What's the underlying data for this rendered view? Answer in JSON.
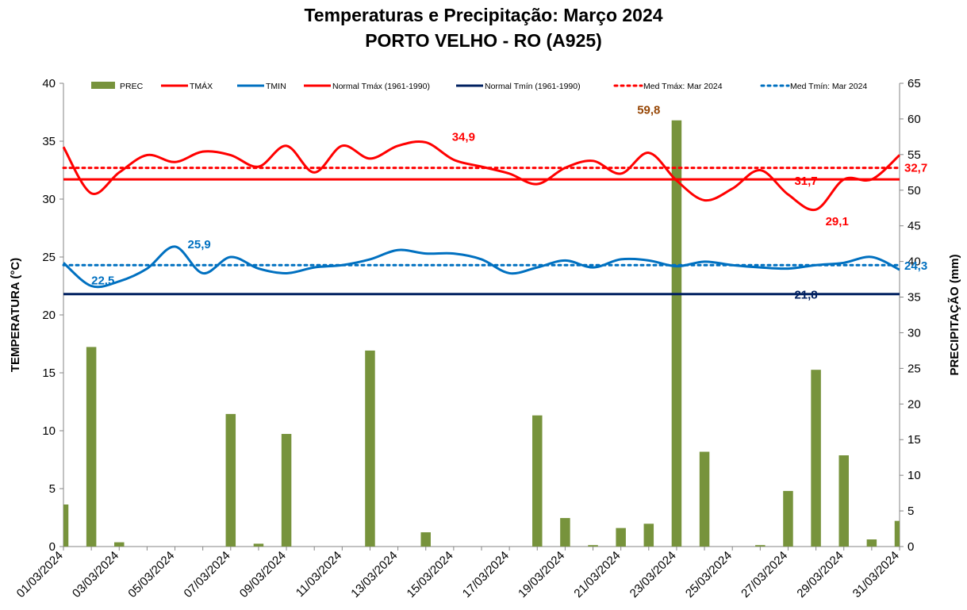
{
  "chart_data": {
    "type": "bar+line",
    "title": "Temperaturas e Precipitação: Março 2024",
    "subtitle": "PORTO VELHO - RO (A925)",
    "ylabel_left": "TEMPERATURA  (°C)",
    "ylabel_right": "PRECIPITAÇÃO  (mm)",
    "ylim_left": [
      0,
      40
    ],
    "ylim_right": [
      0,
      65
    ],
    "yticks_left": [
      "0",
      "5",
      "10",
      "15",
      "20",
      "25",
      "30",
      "35",
      "40"
    ],
    "yticks_right": [
      "0",
      "5",
      "10",
      "15",
      "20",
      "25",
      "30",
      "35",
      "40",
      "45",
      "50",
      "55",
      "60",
      "65"
    ],
    "x": [
      "01/03/2024",
      "02/03/2024",
      "03/03/2024",
      "04/03/2024",
      "05/03/2024",
      "06/03/2024",
      "07/03/2024",
      "08/03/2024",
      "09/03/2024",
      "10/03/2024",
      "11/03/2024",
      "12/03/2024",
      "13/03/2024",
      "14/03/2024",
      "15/03/2024",
      "16/03/2024",
      "17/03/2024",
      "18/03/2024",
      "19/03/2024",
      "20/03/2024",
      "21/03/2024",
      "22/03/2024",
      "23/03/2024",
      "24/03/2024",
      "25/03/2024",
      "26/03/2024",
      "27/03/2024",
      "28/03/2024",
      "29/03/2024",
      "30/03/2024",
      "31/03/2024"
    ],
    "xtick_labels": [
      "01/03/2024",
      "03/03/2024",
      "05/03/2024",
      "07/03/2024",
      "09/03/2024",
      "11/03/2024",
      "13/03/2024",
      "15/03/2024",
      "17/03/2024",
      "19/03/2024",
      "21/03/2024",
      "23/03/2024",
      "25/03/2024",
      "27/03/2024",
      "29/03/2024",
      "31/03/2024"
    ],
    "legend_position": "top",
    "series": [
      {
        "name": "PREC",
        "type": "bar",
        "axis": "right",
        "color": "#77933c",
        "values": [
          5.9,
          28.0,
          0.6,
          0,
          0,
          0,
          18.6,
          0.4,
          15.8,
          0,
          0,
          27.5,
          0,
          2.0,
          0,
          0,
          0,
          18.4,
          4.0,
          0.2,
          2.6,
          3.2,
          59.8,
          13.3,
          0,
          0.2,
          7.8,
          24.8,
          12.8,
          1.0,
          3.6
        ]
      },
      {
        "name": "TMÁX",
        "type": "line",
        "axis": "left",
        "color": "#ff0000",
        "values": [
          34.5,
          30.5,
          32.3,
          33.8,
          33.2,
          34.1,
          33.8,
          32.8,
          34.6,
          32.3,
          34.6,
          33.5,
          34.6,
          34.9,
          33.4,
          32.8,
          32.2,
          31.3,
          32.7,
          33.3,
          32.2,
          34.0,
          31.6,
          29.9,
          30.9,
          32.5,
          30.4,
          29.1,
          31.7,
          31.7,
          33.8
        ]
      },
      {
        "name": "TMIN",
        "type": "line",
        "axis": "left",
        "color": "#0070c0",
        "values": [
          24.5,
          22.5,
          22.9,
          24.0,
          25.9,
          23.6,
          25.0,
          24.0,
          23.6,
          24.1,
          24.3,
          24.8,
          25.6,
          25.3,
          25.3,
          24.8,
          23.6,
          24.1,
          24.7,
          24.1,
          24.8,
          24.7,
          24.2,
          24.6,
          24.3,
          24.1,
          24.0,
          24.3,
          24.5,
          25.0,
          23.9
        ]
      },
      {
        "name": "Normal Tmáx (1961-1990)",
        "type": "hline",
        "axis": "left",
        "color": "#ff0000",
        "value": 31.7
      },
      {
        "name": "Normal Tmín (1961-1990)",
        "type": "hline",
        "axis": "left",
        "color": "#002060",
        "value": 21.8
      },
      {
        "name": "Med Tmáx: Mar 2024",
        "type": "hline-dotted",
        "axis": "left",
        "color": "#ff0000",
        "value": 32.7
      },
      {
        "name": "Med Tmín: Mar 2024",
        "type": "hline-dotted",
        "axis": "left",
        "color": "#0070c0",
        "value": 24.3
      }
    ],
    "annotations": [
      {
        "text": "59,8",
        "x": "22/03/2024",
        "value": 59.8,
        "axis": "right",
        "color": "#974706"
      },
      {
        "text": "34,9",
        "x": "14/03/2024",
        "value": 34.9,
        "axis": "left",
        "color": "#ff0000"
      },
      {
        "text": "29,1",
        "x": "28/03/2024",
        "value": 29.1,
        "axis": "left",
        "color": "#ff0000"
      },
      {
        "text": "25,9",
        "x": "05/03/2024",
        "value": 25.9,
        "axis": "left",
        "color": "#0070c0"
      },
      {
        "text": "22,5",
        "x": "02/03/2024",
        "value": 22.5,
        "axis": "left",
        "color": "#0070c0"
      },
      {
        "text": "32,7",
        "x": "31/03/2024",
        "value": 32.7,
        "axis": "left",
        "color": "#ff0000"
      },
      {
        "text": "31,7",
        "x": "27/03/2024",
        "value": 31.7,
        "axis": "left",
        "color": "#ff0000"
      },
      {
        "text": "24,3",
        "x": "31/03/2024",
        "value": 24.3,
        "axis": "left",
        "color": "#0070c0"
      },
      {
        "text": "21,8",
        "x": "27/03/2024",
        "value": 21.8,
        "axis": "left",
        "color": "#002060"
      }
    ]
  }
}
